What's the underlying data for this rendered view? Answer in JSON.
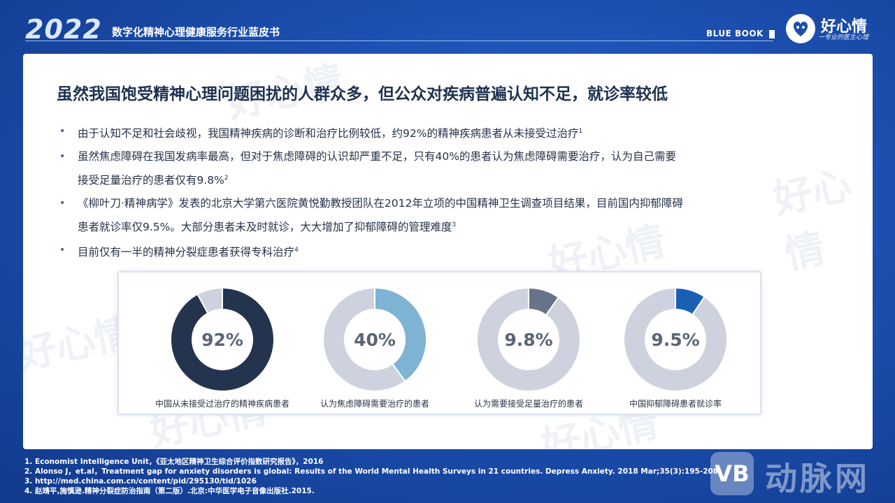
{
  "header": {
    "year": "2022",
    "subtitle": "数字化精神心理健康服务行业蓝皮书",
    "bluebook": "BLUE BOOK",
    "logo_text": "好心情",
    "logo_sub": "一专业的医生心理"
  },
  "slide": {
    "title": "虽然我国饱受精神心理问题困扰的人群众多，但公众对疾病普遍认知不足，就诊率较低",
    "bullets": [
      {
        "line1": "由于认知不足和社会歧视，我国精神疾病的诊断和治疗比例较低，约92%的精神疾病患者从未接受过治疗",
        "line2": "",
        "ref": "1"
      },
      {
        "line1": "虽然焦虑障碍在我国发病率最高，但对于焦虑障碍的认识却严重不足，只有40%的患者认为焦虑障碍需要治疗，认为自己需要",
        "line2": "接受足量治疗的患者仅有9.8%",
        "ref": "2"
      },
      {
        "line1": "《柳叶刀·精神病学》发表的北京大学第六医院黄悦勤教授团队在2012年立项的中国精神卫生调查项目结果，目前国内抑郁障碍",
        "line2": "患者就诊率仅9.5%。大部分患者未及时就诊，大大增加了抑郁障碍的管理难度",
        "ref": "3"
      },
      {
        "line1": "目前仅有一半的精神分裂症患者获得专科治疗",
        "line2": "",
        "ref": "4"
      }
    ]
  },
  "chart_data": {
    "type": "pie",
    "charts": [
      {
        "label": "中国从未接受过治疗的精神疾病患者",
        "value": 92,
        "display": "92%",
        "color": "#24344f"
      },
      {
        "label": "认为焦虑障碍需要治疗的患者",
        "value": 40,
        "display": "40%",
        "color": "#7fb3d3"
      },
      {
        "label": "认为需要接受足量治疗的患者",
        "value": 9.8,
        "display": "9.8%",
        "color": "#67738a"
      },
      {
        "label": "中国抑郁障碍患者就诊率",
        "value": 9.5,
        "display": "9.5%",
        "color": "#1b5fb5"
      }
    ],
    "remainder_color": "#ced2de"
  },
  "footnotes": [
    "1. Economist  Intelligence Unit，《亚太地区精神卫生综合评价指数研究报告》，2016",
    "2. Alonso J，et.al，Treatment gap for anxiety disorders is global: Results of the World Mental Health Surveys in 21 countries. Depress Anxiety. 2018 Mar;35(3):195-208.",
    "3. http://med.china.com.cn/content/pid/295130/tid/1026",
    "4. 赵靖平,施慎逊.精神分裂症防治指南（第二版）.北京:中华医学电子音像出版社.2015."
  ],
  "watermark": {
    "brand": "好心情",
    "corner_badge": "VB",
    "corner_text": "动脉网"
  }
}
